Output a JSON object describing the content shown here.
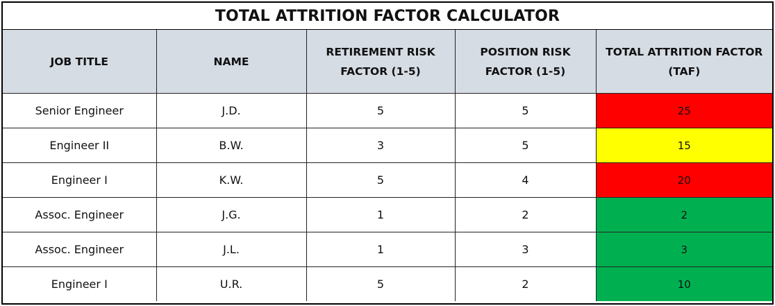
{
  "title": "TOTAL ATTRITION FACTOR CALCULATOR",
  "headers": [
    "JOB TITLE",
    "NAME",
    "RETIREMENT RISK FACTOR (1-5)",
    "POSITION RISK FACTOR (1-5)",
    "TOTAL ATTRITION FACTOR (TAF)"
  ],
  "rows": [
    {
      "job_title": "Senior Engineer",
      "name": "J.D.",
      "retirement_risk": "5",
      "position_risk": "5",
      "taf": "25",
      "taf_color": "#ff0000"
    },
    {
      "job_title": "Engineer II",
      "name": "B.W.",
      "retirement_risk": "3",
      "position_risk": "5",
      "taf": "15",
      "taf_color": "#ffff00"
    },
    {
      "job_title": "Engineer I",
      "name": "K.W.",
      "retirement_risk": "5",
      "position_risk": "4",
      "taf": "20",
      "taf_color": "#ff0000"
    },
    {
      "job_title": "Assoc. Engineer",
      "name": "J.G.",
      "retirement_risk": "1",
      "position_risk": "2",
      "taf": "2",
      "taf_color": "#00b050"
    },
    {
      "job_title": "Assoc. Engineer",
      "name": "J.L.",
      "retirement_risk": "1",
      "position_risk": "3",
      "taf": "3",
      "taf_color": "#00b050"
    },
    {
      "job_title": "Engineer I",
      "name": "U.R.",
      "retirement_risk": "5",
      "position_risk": "2",
      "taf": "10",
      "taf_color": "#00b050"
    }
  ],
  "colors": {
    "header_background": "#d6dce4"
  }
}
